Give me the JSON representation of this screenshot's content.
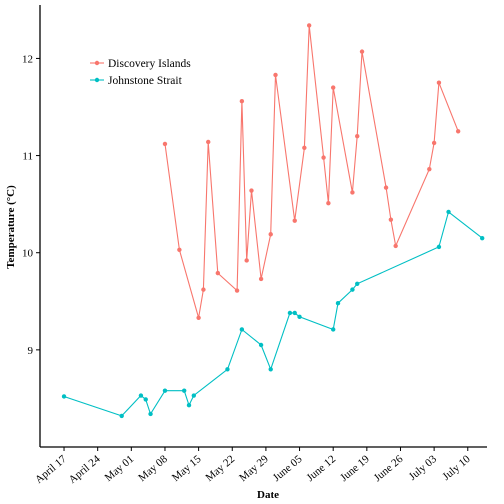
{
  "chart_data": {
    "type": "line",
    "title": "",
    "xlabel": "Date",
    "ylabel": "Temperature (°C)",
    "x_tick_labels": [
      "April 17",
      "April 24",
      "May 01",
      "May 08",
      "May 15",
      "May 22",
      "May 29",
      "June 05",
      "June 12",
      "June 19",
      "June 26",
      "July 03",
      "July 10"
    ],
    "x_tick_days": [
      107,
      114,
      121,
      128,
      135,
      142,
      149,
      156,
      163,
      170,
      177,
      184,
      191
    ],
    "xlim": [
      102,
      195
    ],
    "y_tick_values": [
      9,
      10,
      11,
      12
    ],
    "ylim": [
      8.0,
      12.55
    ],
    "grid": false,
    "legend_position": "top-left",
    "series": [
      {
        "name": "Discovery Islands",
        "color": "#F8766D",
        "x": [
          128,
          131,
          135,
          136,
          137,
          139,
          143,
          144,
          145,
          146,
          148,
          150,
          151,
          155,
          157,
          158,
          161,
          162,
          163,
          167,
          168,
          169,
          174,
          175,
          176,
          183,
          184,
          185,
          189
        ],
        "y": [
          11.12,
          10.03,
          9.33,
          9.62,
          11.14,
          9.79,
          9.61,
          11.56,
          9.92,
          10.64,
          9.73,
          10.19,
          11.83,
          10.33,
          11.08,
          12.34,
          10.98,
          10.51,
          11.7,
          10.62,
          11.2,
          12.07,
          10.67,
          10.34,
          10.07,
          10.86,
          11.13,
          11.75,
          11.25
        ]
      },
      {
        "name": "Johnstone Strait",
        "color": "#00BFC4",
        "x": [
          107,
          119,
          123,
          124,
          125,
          128,
          132,
          133,
          134,
          141,
          144,
          148,
          150,
          154,
          155,
          156,
          163,
          164,
          167,
          168,
          185,
          187,
          194
        ],
        "y": [
          8.52,
          8.32,
          8.53,
          8.49,
          8.34,
          8.58,
          8.58,
          8.43,
          8.53,
          8.8,
          9.21,
          9.05,
          8.8,
          9.38,
          9.38,
          9.34,
          9.21,
          9.48,
          9.62,
          9.68,
          10.06,
          10.42,
          10.15
        ]
      }
    ]
  }
}
